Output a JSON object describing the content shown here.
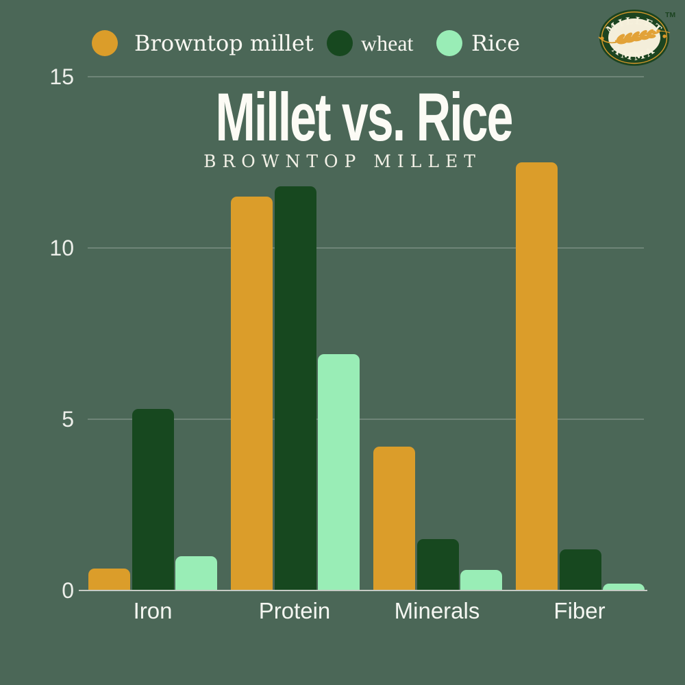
{
  "page": {
    "background_color": "#4B6757"
  },
  "header": {
    "title": "Millet vs. Rice",
    "subtitle": "BROWNTOP MILLET"
  },
  "legend": {
    "items": [
      {
        "label": "Browntop millet",
        "color": "#DB9D2A"
      },
      {
        "label": "wheat",
        "color": "#17481F"
      },
      {
        "label": "Rice",
        "color": "#99EDB6"
      }
    ]
  },
  "logo": {
    "brand_top": "MILLET",
    "brand_bottom": "AMMA",
    "trademark": "TM",
    "colors": {
      "oval": "#1C4420",
      "inner": "#F4EEDA",
      "gold": "#D99A2B",
      "wheat": "#E2A238"
    }
  },
  "chart_data": {
    "type": "bar",
    "title": "Millet vs. Rice",
    "subtitle": "BROWNTOP MILLET",
    "categories": [
      "Iron",
      "Protein",
      "Minerals",
      "Fiber"
    ],
    "series": [
      {
        "name": "Browntop millet",
        "color": "#DB9D2A",
        "values": [
          0.65,
          11.5,
          4.2,
          12.5
        ]
      },
      {
        "name": "wheat",
        "color": "#17481F",
        "values": [
          5.3,
          11.8,
          1.5,
          1.2
        ]
      },
      {
        "name": "Rice",
        "color": "#99EDB6",
        "values": [
          1.0,
          6.9,
          0.6,
          0.2
        ]
      }
    ],
    "xlabel": "",
    "ylabel": "",
    "ylim": [
      0,
      15
    ],
    "yticks": [
      0,
      5,
      10,
      15
    ],
    "grid": true,
    "legend_position": "top"
  }
}
